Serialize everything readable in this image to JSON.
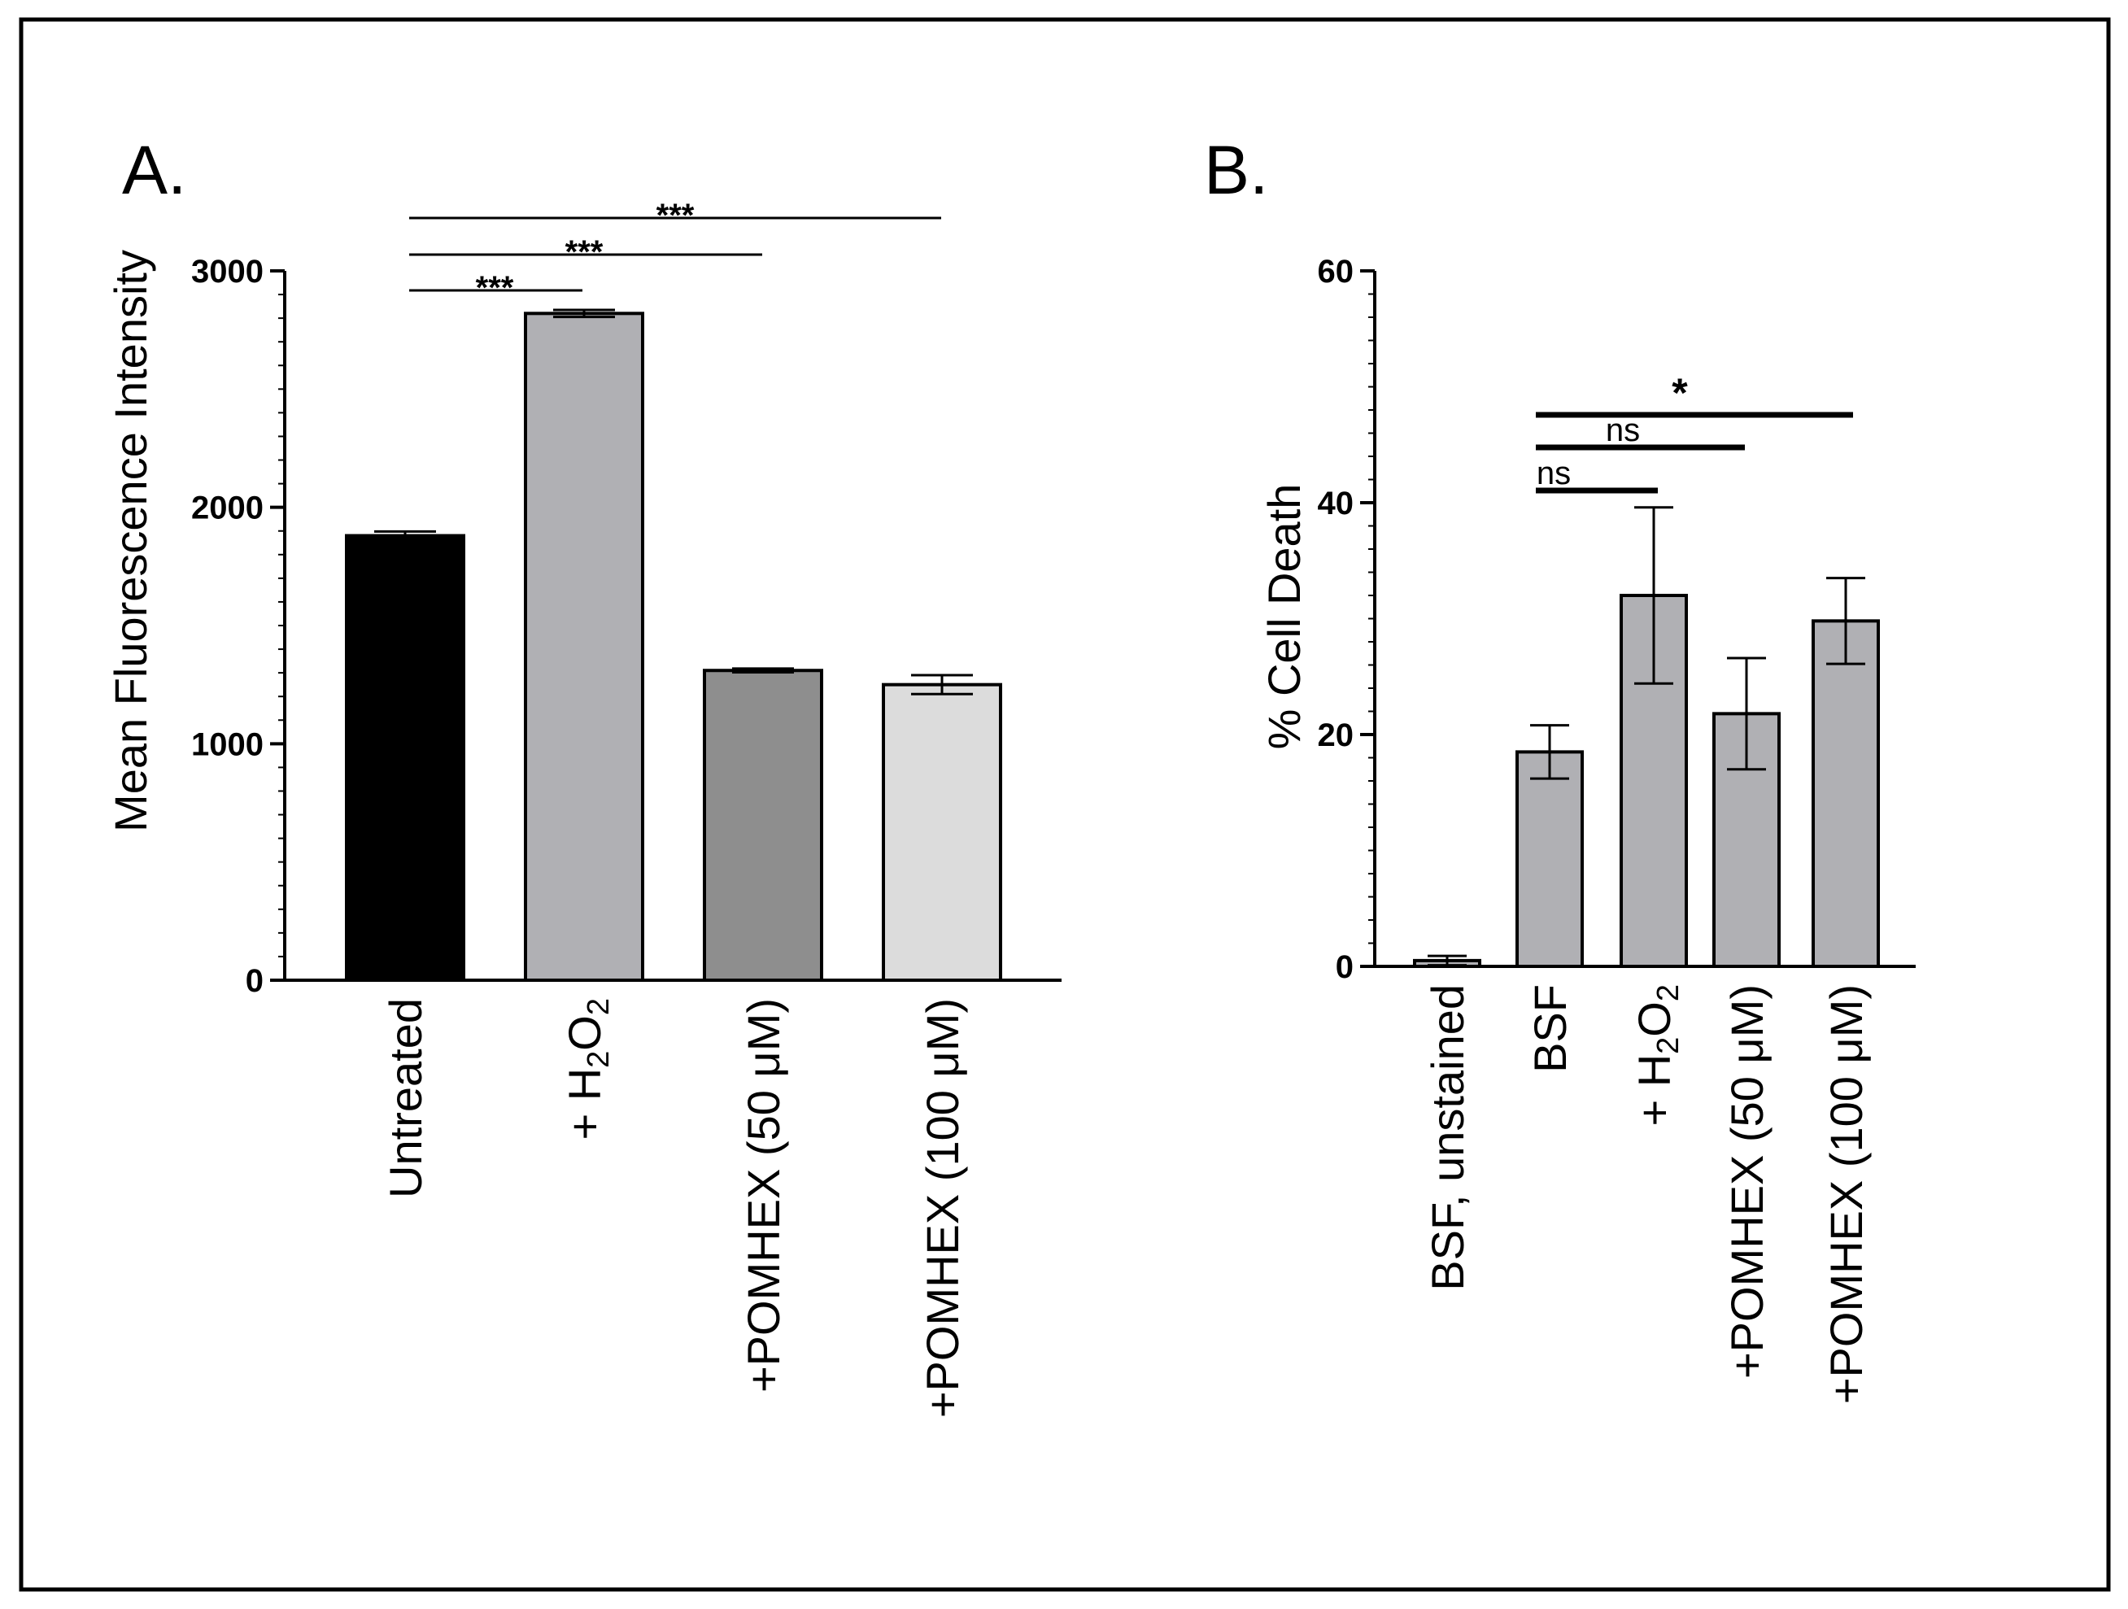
{
  "chart_data": [
    {
      "type": "bar",
      "panel_label": "A.",
      "ylabel": "Mean Fluorescence Intensity",
      "ylim": [
        0,
        3000
      ],
      "yticks": [
        0,
        1000,
        2000,
        3000
      ],
      "categories": [
        "Untreated",
        "+ H2O2",
        "+POMHEX (50 μM)",
        "+POMHEX (100 μM)"
      ],
      "category_labels": [
        {
          "text": "Untreated"
        },
        {
          "text": "+ H",
          "sub": "2",
          "text2": "O",
          "sub2": "2"
        },
        {
          "text": "+POMHEX (50 μM)"
        },
        {
          "text": "+POMHEX (100 μM)"
        }
      ],
      "values": [
        1880,
        2820,
        1310,
        1250
      ],
      "errors": [
        18,
        15,
        8,
        40
      ],
      "colors": [
        "#000000",
        "#b0b0b4",
        "#8e8e8e",
        "#dcdcdc"
      ],
      "significance": [
        {
          "from": 0,
          "to": 1,
          "label": "***"
        },
        {
          "from": 0,
          "to": 2,
          "label": "***"
        },
        {
          "from": 0,
          "to": 3,
          "label": "***"
        }
      ]
    },
    {
      "type": "bar",
      "panel_label": "B.",
      "ylabel": "% Cell Death",
      "ylim": [
        0,
        60
      ],
      "yticks": [
        0,
        20,
        40,
        60
      ],
      "categories": [
        "BSF, unstained",
        "BSF",
        "+ H2O2",
        "+POMHEX (50 μM)",
        "+POMHEX (100 μM)"
      ],
      "category_labels": [
        {
          "text": "BSF, unstained"
        },
        {
          "text": "BSF"
        },
        {
          "text": "+ H",
          "sub": "2",
          "text2": "O",
          "sub2": "2"
        },
        {
          "text": "+POMHEX (50 μM)"
        },
        {
          "text": "+POMHEX (100 μM)"
        }
      ],
      "values": [
        0.5,
        18.5,
        32,
        21.8,
        29.8
      ],
      "errors": [
        0.4,
        2.3,
        7.6,
        4.8,
        3.7
      ],
      "colors": [
        "#b0b0b4",
        "#b0b0b4",
        "#b0b0b4",
        "#b0b0b4",
        "#b0b0b4"
      ],
      "significance": [
        {
          "from": 1,
          "to": 2,
          "label": "ns"
        },
        {
          "from": 1,
          "to": 3,
          "label": "ns"
        },
        {
          "from": 1,
          "to": 4,
          "label": "*"
        }
      ]
    }
  ]
}
